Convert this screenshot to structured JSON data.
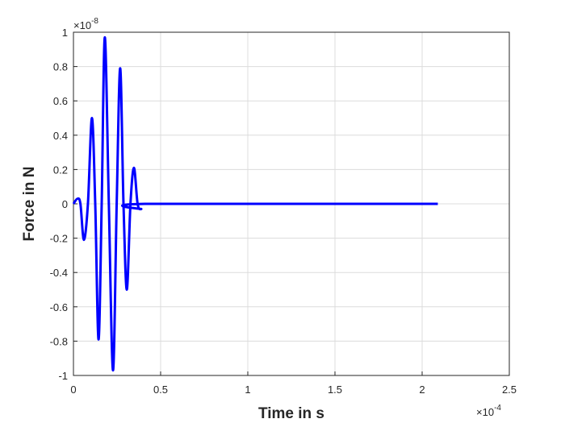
{
  "chart_data": {
    "type": "line",
    "xlabel": "Time in s",
    "ylabel": "Force in N",
    "x_multiplier": {
      "base": "×10",
      "exponent": "-4"
    },
    "y_multiplier": {
      "base": "×10",
      "exponent": "-8"
    },
    "x": [
      0,
      0.023,
      0.04,
      0.06,
      0.083,
      0.106,
      0.125,
      0.144,
      0.162,
      0.18,
      0.203,
      0.227,
      0.248,
      0.268,
      0.287,
      0.306,
      0.327,
      0.347,
      0.368,
      0.389,
      0.41,
      2.09
    ],
    "series": [
      {
        "color": "#0000ff",
        "values": [
          0,
          0.03,
          0,
          -0.21,
          0,
          0.5,
          0,
          -0.79,
          0,
          0.97,
          0,
          -0.97,
          0,
          0.79,
          0,
          -0.5,
          0,
          0.21,
          0,
          -0.03,
          0,
          0
        ]
      }
    ],
    "xlim": [
      0,
      2.5
    ],
    "xticks": [
      0,
      0.5,
      1,
      1.5,
      2,
      2.5
    ],
    "ylim": [
      -1,
      1
    ],
    "yticks": [
      -1,
      -0.8,
      -0.6,
      -0.4,
      -0.2,
      0,
      0.2,
      0.4,
      0.6,
      0.8,
      1
    ],
    "grid": true
  }
}
